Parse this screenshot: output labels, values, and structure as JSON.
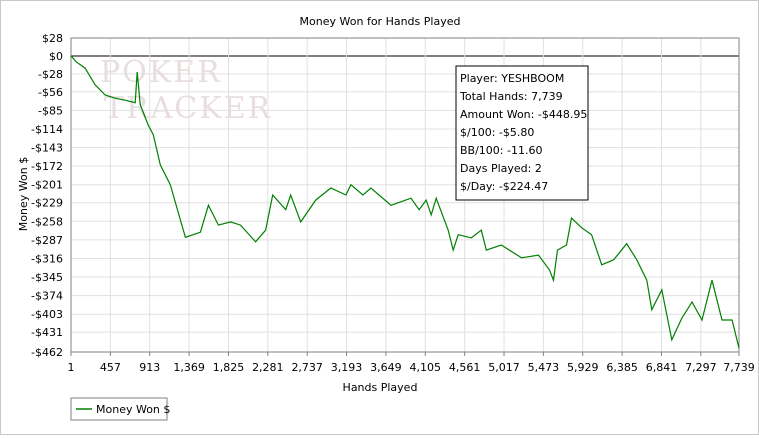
{
  "chart_data": {
    "type": "line",
    "title": "Money Won for Hands Played",
    "xlabel": "Hands Played",
    "ylabel": "Money Won $",
    "watermark": [
      "POKER",
      "TRACKER"
    ],
    "info_box": [
      "Player: YESHBOOM",
      "Total Hands: 7,739",
      "Amount Won: -$448.95",
      "$/100: -$5.80",
      "BB/100: -11.60",
      "Days Played: 2",
      "$/Day: -$224.47"
    ],
    "grid": true,
    "legend": "bottom-left",
    "xlim": [
      1,
      7739
    ],
    "ylim": [
      -462,
      28
    ],
    "xticks": [
      1,
      457,
      913,
      {
        "value": 1369,
        "label": "1,369"
      },
      {
        "value": 1825,
        "label": "1,825"
      },
      {
        "value": 2281,
        "label": "2,281"
      },
      {
        "value": 2737,
        "label": "2,737"
      },
      {
        "value": 3193,
        "label": "3,193"
      },
      {
        "value": 3649,
        "label": "3,649"
      },
      {
        "value": 4105,
        "label": "4,105"
      },
      {
        "value": 4561,
        "label": "4,561"
      },
      {
        "value": 5017,
        "label": "5,017"
      },
      {
        "value": 5473,
        "label": "5,473"
      },
      {
        "value": 5929,
        "label": "5,929"
      },
      {
        "value": 6385,
        "label": "6,385"
      },
      {
        "value": 6841,
        "label": "6,841"
      },
      {
        "value": 7297,
        "label": "7,297"
      },
      {
        "value": 7739,
        "label": "7,739"
      }
    ],
    "yticks": [
      {
        "value": 28,
        "label": "$28"
      },
      {
        "value": 0,
        "label": "$0"
      },
      {
        "value": -28,
        "label": "-$28"
      },
      {
        "value": -56,
        "label": "-$56"
      },
      {
        "value": -85,
        "label": "-$85"
      },
      {
        "value": -114,
        "label": "-$114"
      },
      {
        "value": -143,
        "label": "-$143"
      },
      {
        "value": -172,
        "label": "-$172"
      },
      {
        "value": -201,
        "label": "-$201"
      },
      {
        "value": -229,
        "label": "-$229"
      },
      {
        "value": -258,
        "label": "-$258"
      },
      {
        "value": -287,
        "label": "-$287"
      },
      {
        "value": -316,
        "label": "-$316"
      },
      {
        "value": -345,
        "label": "-$345"
      },
      {
        "value": -374,
        "label": "-$374"
      },
      {
        "value": -403,
        "label": "-$403"
      },
      {
        "value": -431,
        "label": "-$431"
      },
      {
        "value": -462,
        "label": "-$462"
      }
    ],
    "x": [
      1,
      59,
      164,
      280,
      396,
      512,
      628,
      745,
      768,
      803,
      896,
      954,
      1035,
      1151,
      1268,
      1326,
      1500,
      1593,
      1709,
      1849,
      1965,
      2139,
      2255,
      2337,
      2488,
      2546,
      2662,
      2836,
      3011,
      3185,
      3243,
      3382,
      3475,
      3708,
      3940,
      4033,
      4115,
      4173,
      4231,
      4370,
      4428,
      4486,
      4637,
      4754,
      4812,
      4986,
      5219,
      5416,
      5544,
      5590,
      5637,
      5741,
      5799,
      5916,
      6032,
      6148,
      6287,
      6438,
      6554,
      6671,
      6729,
      6845,
      6961,
      7078,
      7194,
      7310,
      7426,
      7542,
      7659,
      7739
    ],
    "series": [
      {
        "name": "Money Won $",
        "color": "#008000",
        "values": [
          0,
          -9,
          -19,
          -45,
          -61,
          -66,
          -69,
          -73,
          -25,
          -76,
          -108,
          -123,
          -170,
          -201,
          -256,
          -283,
          -275,
          -233,
          -264,
          -259,
          -264,
          -290,
          -272,
          -217,
          -240,
          -217,
          -259,
          -225,
          -206,
          -217,
          -201,
          -217,
          -206,
          -233,
          -222,
          -240,
          -225,
          -248,
          -222,
          -272,
          -303,
          -279,
          -284,
          -272,
          -303,
          -295,
          -315,
          -311,
          -334,
          -350,
          -303,
          -295,
          -253,
          -268,
          -279,
          -326,
          -318,
          -293,
          -318,
          -350,
          -396,
          -365,
          -443,
          -409,
          -384,
          -412,
          -350,
          -412,
          -412,
          -456
        ]
      }
    ]
  }
}
